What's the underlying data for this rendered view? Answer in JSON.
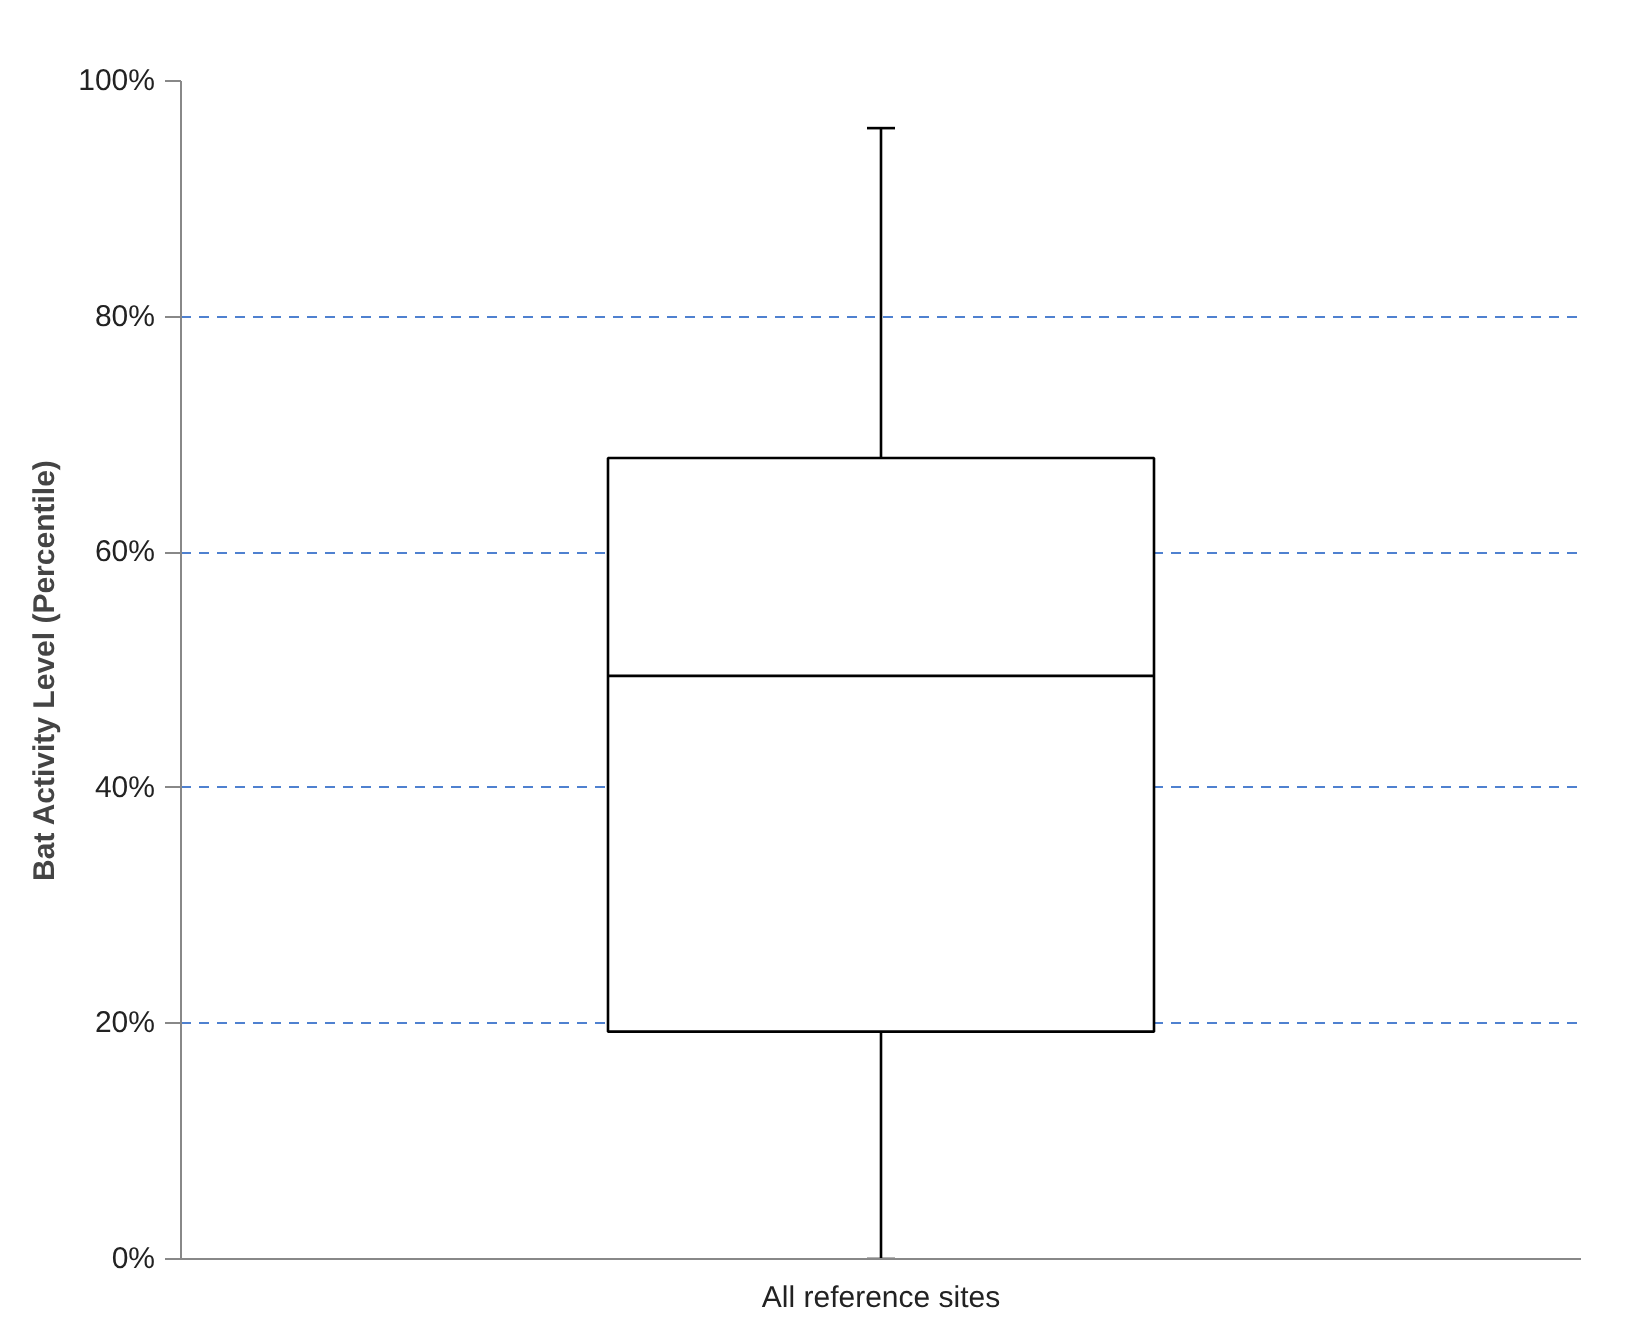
{
  "chart_data": {
    "type": "box",
    "ylabel": "Bat Activity Level (Percentile)",
    "categories": [
      "All reference sites"
    ],
    "boxes": [
      {
        "low": 0,
        "q1": 19.3,
        "median": 49.5,
        "q3": 68,
        "high": 96
      }
    ],
    "color": "#000000",
    "ylim": [
      0,
      100
    ],
    "yticks": [
      {
        "value": 0,
        "label": "0%"
      },
      {
        "value": 20,
        "label": "20%"
      },
      {
        "value": 40,
        "label": "40%"
      },
      {
        "value": 60,
        "label": "60%"
      },
      {
        "value": 80,
        "label": "80%"
      },
      {
        "value": 100,
        "label": "100%"
      }
    ],
    "grid": "y"
  }
}
